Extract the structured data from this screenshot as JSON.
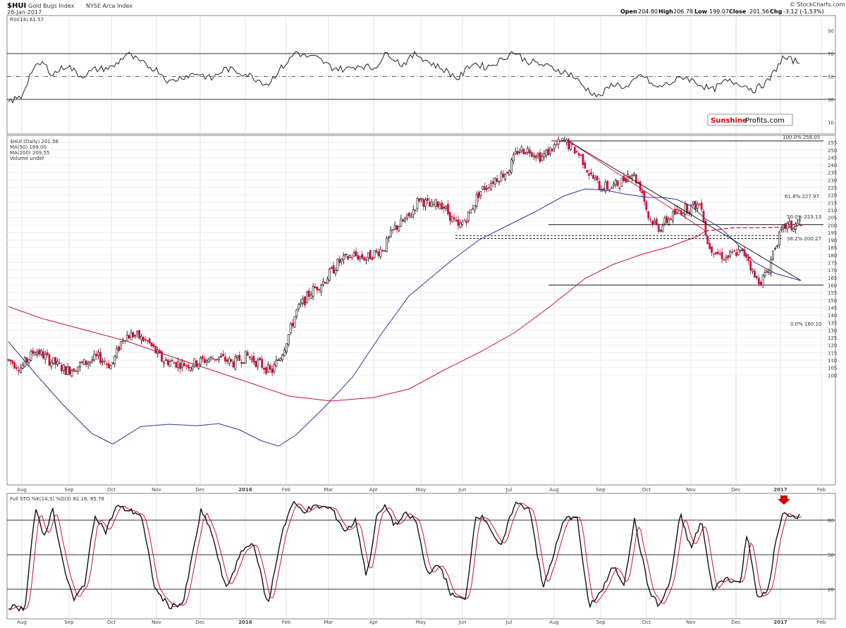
{
  "header": {
    "symbol": "$HUI",
    "name": "Gold Bugs Index",
    "exchange": "NYSE Arca Index",
    "date": "26-Jan-2017",
    "source": "© StockCharts.com",
    "open_label": "Open",
    "open": "204.80",
    "high_label": "High",
    "high": "206.78",
    "low_label": "Low",
    "low": "199.07",
    "close_label": "Close",
    "close": "201.56",
    "chg_label": "Chg",
    "chg": "-3.12 (-1.53%)"
  },
  "watermark": {
    "part1": "Sunshine",
    "part2": "Profits.com"
  },
  "rsi_panel": {
    "label": "RSI(14) 61.57",
    "levels": [
      70,
      50,
      30
    ],
    "ticks": [
      "90",
      "70",
      "50",
      "30",
      "10"
    ]
  },
  "price_panel": {
    "legend": [
      "$HUI (Daily) 201.56",
      "MA(50) 189.00",
      "MA(200) 209.55",
      "Volume undef"
    ],
    "fib_labels": [
      "100.0% 256.05",
      "61.8% 227.97",
      "50.0% 223.13",
      "38.2% 200.27",
      "0.0% 160.10"
    ],
    "y_ticks": [
      "255",
      "250",
      "245",
      "240",
      "235",
      "230",
      "225",
      "220",
      "215",
      "210",
      "205",
      "200",
      "195",
      "190",
      "185",
      "180",
      "175",
      "170",
      "165",
      "160",
      "155",
      "150",
      "145",
      "140",
      "135",
      "130",
      "125",
      "120",
      "115",
      "110",
      "105",
      "100"
    ]
  },
  "sto_panel": {
    "label": "Full STO %K(14,3) %D(3) 82.18, 85.78",
    "levels": [
      80,
      50,
      20
    ],
    "ticks": [
      "80",
      "50",
      "20"
    ]
  },
  "x_labels": [
    "Aug",
    "Sep",
    "Oct",
    "Nov",
    "Dec",
    "2016",
    "Feb",
    "Mar",
    "Apr",
    "May",
    "Jun",
    "Jul",
    "Aug",
    "Sep",
    "Oct",
    "Nov",
    "Dec",
    "2017",
    "Feb"
  ],
  "colors": {
    "up": "#000000",
    "down": "#d0103a",
    "ma50": "#2b3a9a",
    "ma200": "#d0103a",
    "rsi": "#222222",
    "sto_k": "#111111",
    "sto_d": "#d0103a",
    "arrow": "#cc0000"
  },
  "chart_data": {
    "type": "line",
    "title": "$HUI Gold Bugs Index NYSE Arca Index",
    "x_range": [
      "2015-08",
      "2017-02"
    ],
    "price_range": [
      100,
      260
    ],
    "price_path_approx": {
      "dates": [
        "Aug 2015",
        "Sep 2015",
        "Oct 2015",
        "Nov 2015",
        "Dec 2015",
        "Jan 2016",
        "Feb 2016",
        "Mar 2016",
        "Apr 2016",
        "May 2016",
        "Jun 2016",
        "Jul 2016",
        "Aug 2016",
        "Sep 2016",
        "Oct 2016",
        "Nov 2016",
        "Dec 2016",
        "Jan 2017"
      ],
      "close": [
        112,
        108,
        127,
        110,
        107,
        102,
        142,
        160,
        180,
        190,
        205,
        240,
        256,
        227,
        198,
        210,
        163,
        201
      ]
    },
    "fib_levels": [
      {
        "label": "100.0%",
        "value": 256.05
      },
      {
        "label": "61.8%",
        "value": 227.97
      },
      {
        "label": "50.0%",
        "value": 223.13
      },
      {
        "label": "38.2%",
        "value": 200.27
      },
      {
        "label": "0.0%",
        "value": 160.1
      }
    ],
    "ma50_last": 189.0,
    "ma200_last": 209.55,
    "rsi_last": 61.57,
    "sto_k_last": 82.18,
    "sto_d_last": 85.78
  }
}
